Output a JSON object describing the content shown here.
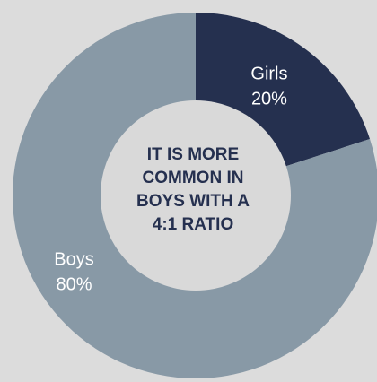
{
  "chart_data": {
    "type": "pie",
    "slices": [
      {
        "name": "Girls",
        "value": 20,
        "label": "20%",
        "color": "#25304f"
      },
      {
        "name": "Boys",
        "value": 80,
        "label": "80%",
        "color": "#8899a6"
      }
    ],
    "center_text": [
      "IT IS MORE",
      "COMMON IN",
      "BOYS WITH A",
      "4:1 RATIO"
    ],
    "hole_color": "#d9d9d9",
    "background": "#dcdcdc"
  }
}
